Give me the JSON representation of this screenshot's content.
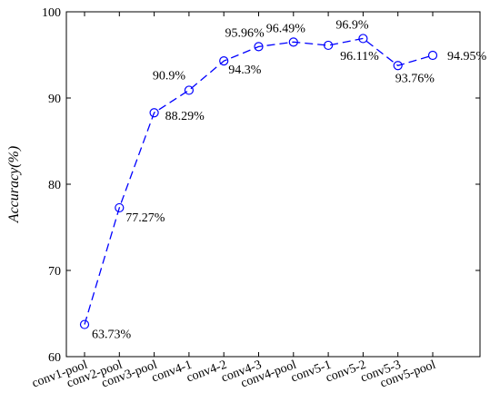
{
  "chart_data": {
    "type": "line",
    "title": "",
    "xlabel": "",
    "ylabel": "Accuracy(%)",
    "ylim": [
      60,
      100
    ],
    "yticks": [
      60,
      70,
      80,
      90,
      100
    ],
    "grid": false,
    "categories": [
      "conv1-pool",
      "conv2-pool",
      "conv3-pool",
      "conv4-1",
      "conv4-2",
      "conv4-3",
      "conv4-pool",
      "conv5-1",
      "conv5-2",
      "conv5-3",
      "conv5-pool"
    ],
    "series": [
      {
        "values": [
          63.73,
          77.27,
          88.29,
          90.9,
          94.3,
          95.96,
          96.49,
          96.11,
          96.9,
          93.76,
          94.95
        ],
        "color": "#0000ff",
        "line_style": "dashed",
        "marker": "circle"
      }
    ],
    "data_labels": [
      "63.73%",
      "77.27%",
      "88.29%",
      "90.9%",
      "94.3%",
      "95.96%",
      "96.49%",
      "96.11%",
      "96.9%",
      "93.76%",
      "94.95%"
    ]
  }
}
